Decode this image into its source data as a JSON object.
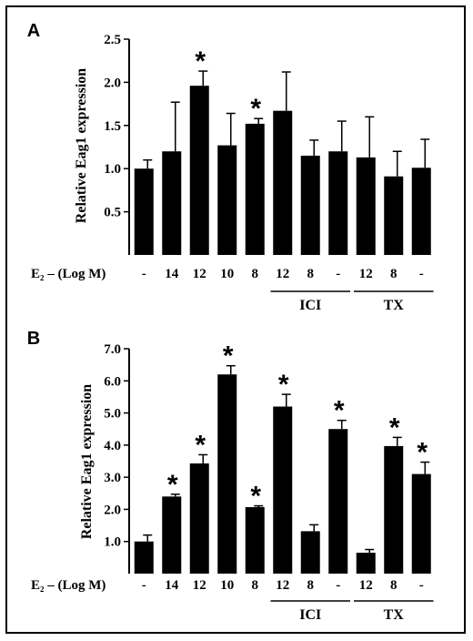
{
  "chart_data": [
    {
      "panel": "A",
      "type": "bar",
      "ylabel": "Relative Eag1 expression",
      "ylim": [
        0,
        2.5
      ],
      "yticks": [
        "0.5",
        "1.0",
        "1.5",
        "2.0",
        "2.5"
      ],
      "ytick_values": [
        0.5,
        1.0,
        1.5,
        2.0,
        2.5
      ],
      "row_label": "E₂ – (Log M)",
      "categories": [
        "-",
        "14",
        "12",
        "10",
        "8",
        "12",
        "8",
        "-",
        "12",
        "8",
        "-"
      ],
      "values": [
        1.0,
        1.2,
        1.96,
        1.27,
        1.52,
        1.67,
        1.15,
        1.2,
        1.13,
        0.91,
        1.01
      ],
      "errors": [
        0.1,
        0.57,
        0.17,
        0.37,
        0.06,
        0.45,
        0.18,
        0.35,
        0.47,
        0.29,
        0.33
      ],
      "significant": [
        false,
        false,
        true,
        false,
        true,
        false,
        false,
        false,
        false,
        false,
        false
      ],
      "groups": [
        {
          "label": "ICI",
          "start": 5,
          "end": 7
        },
        {
          "label": "TX",
          "start": 8,
          "end": 10
        }
      ],
      "grid": false,
      "bar_color": "#000000"
    },
    {
      "panel": "B",
      "type": "bar",
      "ylabel": "Relative Eag1 expression",
      "ylim": [
        0,
        7.0
      ],
      "yticks": [
        "1.0",
        "2.0",
        "3.0",
        "4.0",
        "5.0",
        "6.0",
        "7.0"
      ],
      "ytick_values": [
        1,
        2,
        3,
        4,
        5,
        6,
        7
      ],
      "row_label": "E₂ – (Log M)",
      "categories": [
        "-",
        "14",
        "12",
        "10",
        "8",
        "12",
        "8",
        "-",
        "12",
        "8",
        "-"
      ],
      "values": [
        1.0,
        2.4,
        3.43,
        6.2,
        2.07,
        5.2,
        1.32,
        4.5,
        0.65,
        3.97,
        3.1
      ],
      "errors": [
        0.2,
        0.07,
        0.27,
        0.27,
        0.04,
        0.38,
        0.2,
        0.27,
        0.1,
        0.27,
        0.37
      ],
      "significant": [
        false,
        true,
        true,
        true,
        true,
        true,
        false,
        true,
        false,
        true,
        true
      ],
      "groups": [
        {
          "label": "ICI",
          "start": 5,
          "end": 7
        },
        {
          "label": "TX",
          "start": 8,
          "end": 10
        }
      ],
      "grid": false,
      "bar_color": "#000000"
    }
  ],
  "star_symbol": "*"
}
